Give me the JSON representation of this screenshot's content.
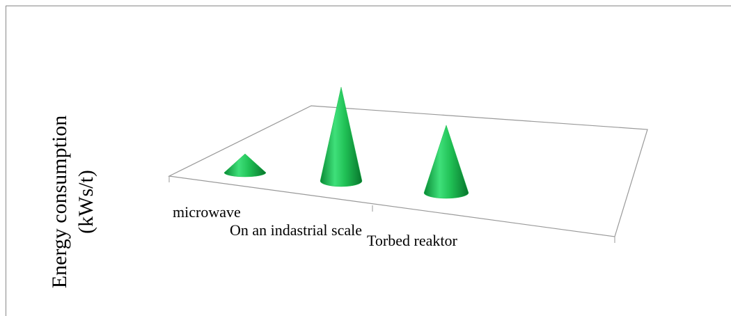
{
  "chart_data": {
    "type": "cone",
    "y_label": [
      "Energy consumption",
      "(kWs/t)"
    ],
    "categories": [
      "microwave",
      "On an indastrial scale",
      "Torbed reaktor"
    ],
    "values": [
      20,
      100,
      72
    ],
    "color": "#1fbf4f",
    "ylim": [
      0,
      100
    ]
  }
}
